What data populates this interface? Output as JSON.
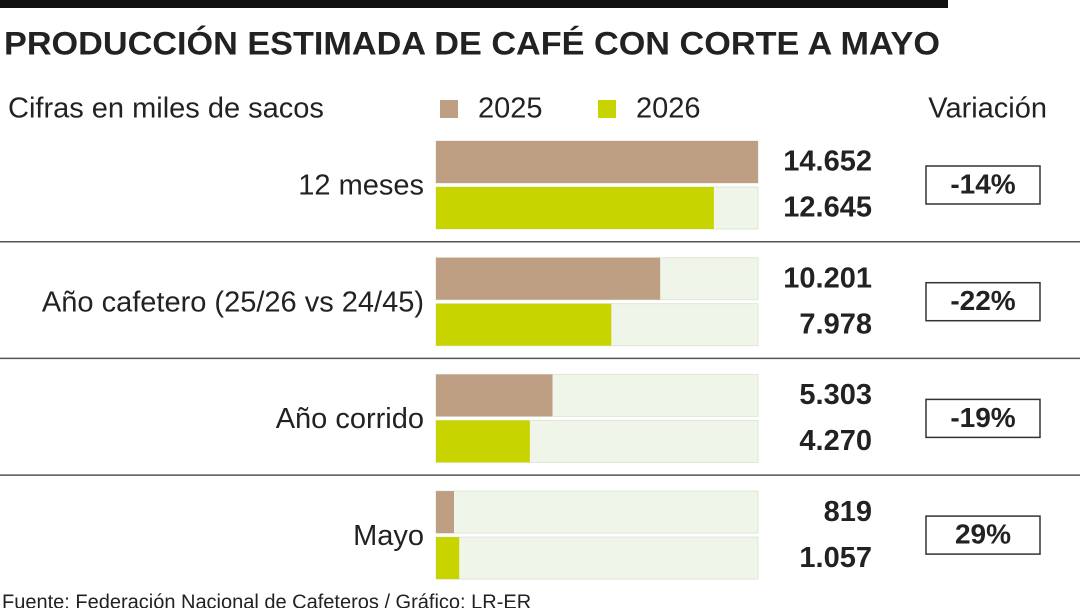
{
  "chart_data": {
    "type": "bar",
    "orientation": "horizontal",
    "title": "PRODUCCIÓN ESTIMADA DE CAFÉ CON CORTE A MAYO",
    "subtitle": "Cifras en miles de sacos",
    "categories": [
      "12 meses",
      "Año cafetero (25/26 vs 24/45)",
      "Año corrido",
      "Mayo"
    ],
    "series": [
      {
        "name": "2025",
        "color": "#bf9f84",
        "values": [
          14652,
          10201,
          5303,
          819
        ],
        "value_labels": [
          "14.652",
          "10.201",
          "5.303",
          "819"
        ]
      },
      {
        "name": "2026",
        "color": "#c8d400",
        "values": [
          12645,
          7978,
          4270,
          1057
        ],
        "value_labels": [
          "12.645",
          "7.978",
          "4.270",
          "1.057"
        ]
      }
    ],
    "xlim": [
      0,
      14652
    ],
    "variation": {
      "title": "Variación",
      "values": [
        -14,
        -22,
        -19,
        29
      ],
      "value_labels": [
        "-14%",
        "-22%",
        "-19%",
        "29%"
      ]
    },
    "source": "Fuente: Federación Nacional de Cafeteros / Gráfico: LR-ER"
  }
}
